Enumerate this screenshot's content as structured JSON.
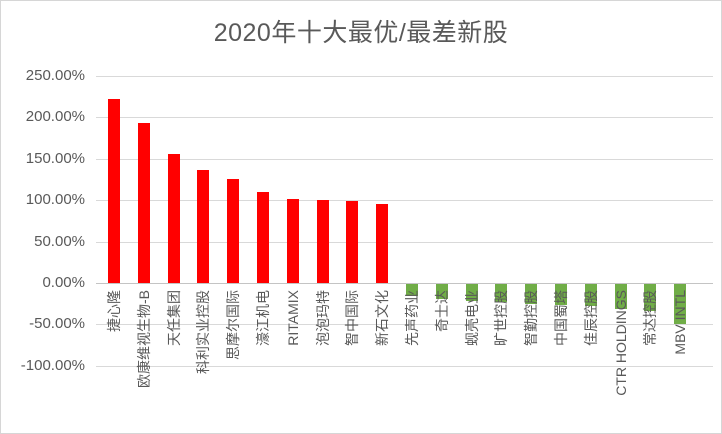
{
  "chart_data": {
    "type": "bar",
    "title": "2020年十大最优/最差新股",
    "categories": [
      "捷心隆",
      "欧康维视生物-B",
      "天任集团",
      "科利实业控股",
      "思摩尔国际",
      "濠江机电",
      "RITAMIX",
      "泡泡玛特",
      "智中国际",
      "新石文化",
      "先声药业",
      "奇士达",
      "蚬壳电业",
      "旷世控股",
      "智勤控股",
      "中国蜀塔",
      "佳辰控股",
      "CTR HOLDINGS",
      "常达控股",
      "MBV INTL"
    ],
    "values": [
      222,
      193,
      156,
      137,
      126,
      110,
      101,
      100,
      99,
      96,
      -15,
      -18,
      -20,
      -22,
      -24,
      -25,
      -27,
      -30,
      -33,
      -48
    ],
    "unit": "%",
    "xlabel": "",
    "ylabel": "",
    "ylim": [
      -100,
      250
    ],
    "y_tick_labels": [
      "250.00%",
      "200.00%",
      "150.00%",
      "100.00%",
      "50.00%",
      "0.00%",
      "-50.00%",
      "-100.00%"
    ],
    "y_tick_values": [
      250,
      200,
      150,
      100,
      50,
      0,
      -50,
      -100
    ],
    "grid": true,
    "legend": "none",
    "colors": {
      "positive_bar": "#ff0000",
      "negative_bar": "#70ad47",
      "gridline": "#d9d9d9",
      "axis_line": "#c4c4c4",
      "text": "#595959",
      "title": "#595959",
      "background": "#ffffff",
      "frame_border": "#d6d6d6"
    }
  }
}
